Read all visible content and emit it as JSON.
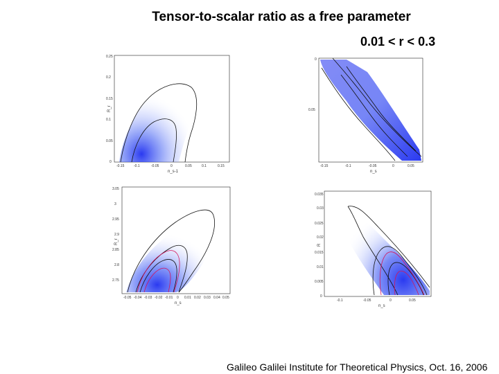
{
  "slide": {
    "title": "Tensor-to-scalar ratio as a free parameter",
    "range": "0.01 < r < 0.3",
    "footer": "Galileo Galilei Institute for Theoretical Physics, Oct. 16, 2006"
  },
  "colors": {
    "density": "#1f2ff0",
    "contour": "#111111",
    "contour_highlight": "#d4145a"
  },
  "panels": [
    {
      "id": "top-left",
      "ylabel": "R_r",
      "xlabel": "n_s-1",
      "yticks": [
        "0.25",
        "0.2",
        "0.15",
        "0.1",
        "0.05",
        "0"
      ],
      "xticks": [
        "-0.15",
        "-0.1",
        "-0.05",
        "0",
        "0.05",
        "0.1",
        "0.15"
      ]
    },
    {
      "id": "top-right",
      "ylabel": "",
      "xlabel": "n_s",
      "yticks": [
        "0",
        "0.05"
      ],
      "xticks": [
        "-0.15",
        "-0.1",
        "-0.05",
        "0",
        "0.05"
      ]
    },
    {
      "id": "bottom-left",
      "ylabel": "R_r",
      "xlabel": "n_s",
      "yticks": [
        "3.05",
        "3",
        "2.95",
        "2.9",
        "2.85",
        "2.8",
        "2.75"
      ],
      "xticks": [
        "-0.05",
        "-0.04",
        "-0.03",
        "-0.02",
        "-0.01",
        "0",
        "0.01",
        "0.02",
        "0.03",
        "0.04",
        "0.05"
      ]
    },
    {
      "id": "bottom-right",
      "ylabel": "R",
      "xlabel": "n_s",
      "yticks": [
        "0.035",
        "0.03",
        "0.025",
        "0.02",
        "0.015",
        "0.01",
        "0.005",
        "0"
      ],
      "xticks": [
        "-0.1",
        "-0.05",
        "0",
        "0.05"
      ]
    }
  ]
}
